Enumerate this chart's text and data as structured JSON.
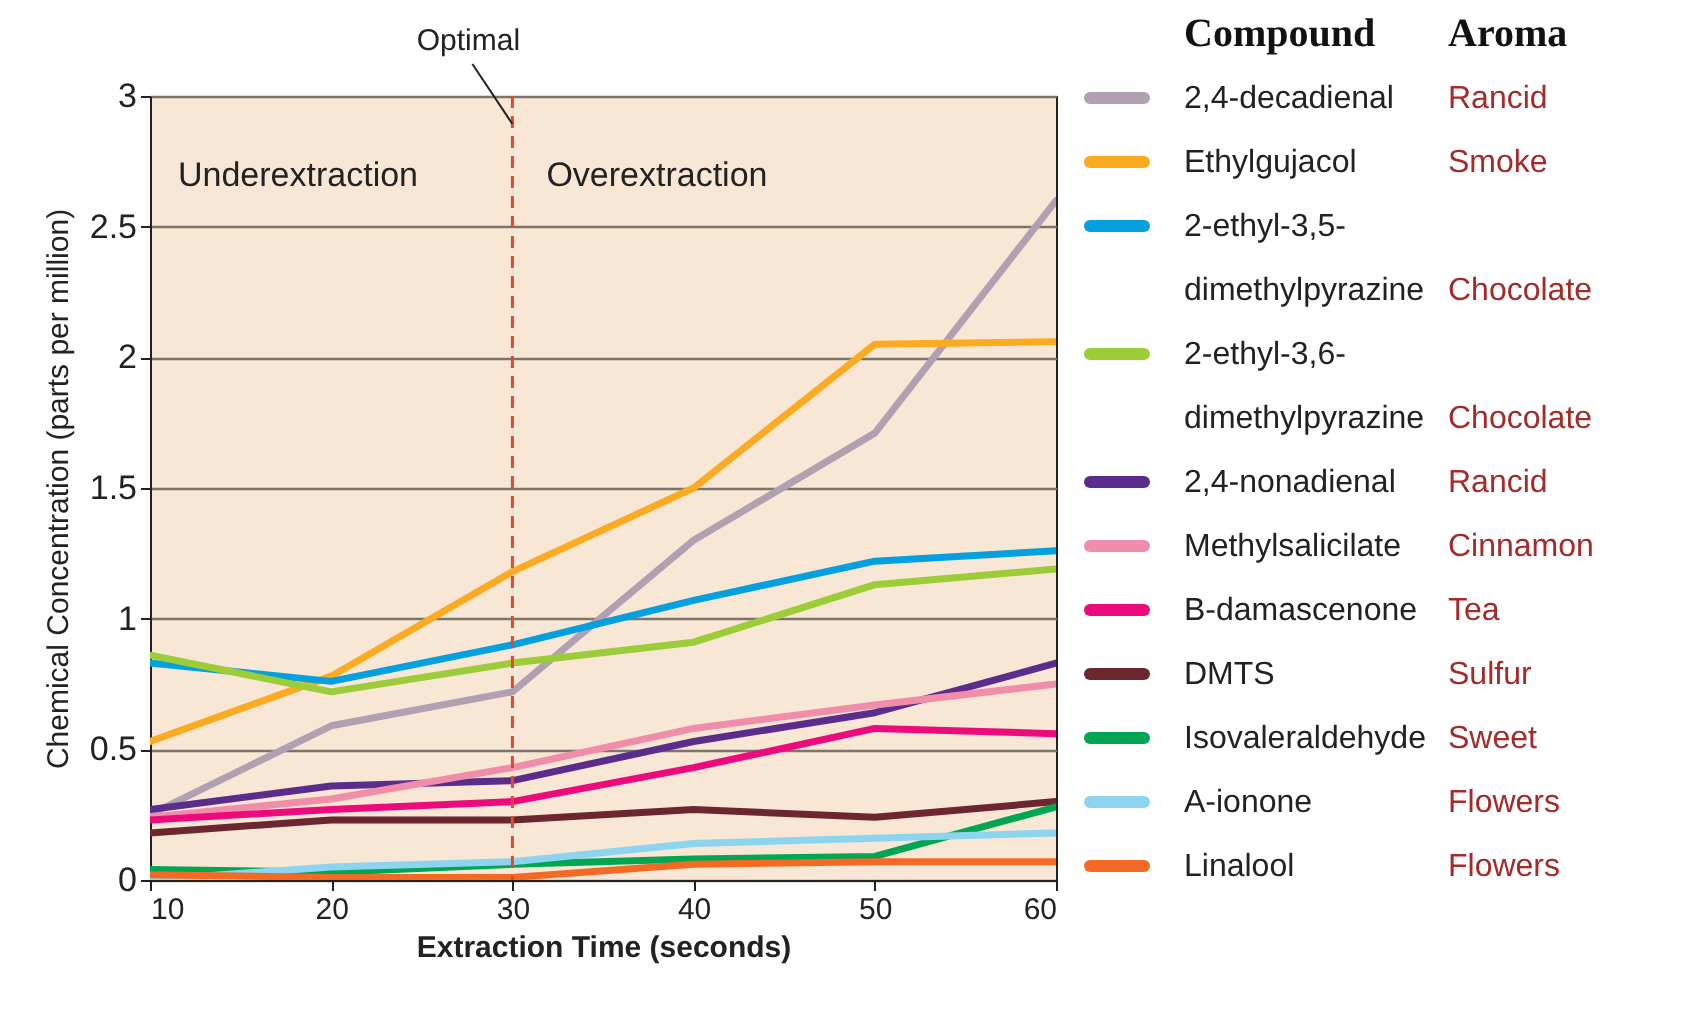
{
  "chart_data": {
    "type": "line",
    "xlabel": "Extraction Time (seconds)",
    "ylabel": "Chemical Concentration (parts per million)",
    "legend_title": "Compound",
    "x": [
      10,
      20,
      30,
      40,
      50,
      60
    ],
    "xlim": [
      10,
      60
    ],
    "xticks": [
      10,
      20,
      30,
      40,
      50,
      60
    ],
    "ylim": [
      0,
      3
    ],
    "yticks": [
      0,
      0.5,
      1,
      1.5,
      2,
      2.5,
      3
    ],
    "grid": "y",
    "legend": "right",
    "line_style": "solid",
    "ref_lines": [
      {
        "axis": "x",
        "value": 30,
        "label": "Optimal",
        "color": "#e8452c",
        "line_style": "dashed"
      }
    ],
    "annotations": [
      "Underextraction",
      "Overextraction",
      "Aroma",
      "Rancid",
      "Smoke",
      "Chocolate",
      "Chocolate",
      "Rancid",
      "Cinnamon",
      "Tea",
      "Sulfur",
      "Sweet",
      "Flowers",
      "Flowers"
    ],
    "series": [
      {
        "name": "2,4-decadienal",
        "color": "#b0a0b2",
        "values": [
          0.25,
          0.59,
          0.72,
          1.3,
          1.71,
          2.6
        ]
      },
      {
        "name": "Ethylgujacol",
        "color": "#fbab22",
        "values": [
          0.53,
          0.78,
          1.18,
          1.5,
          2.05,
          2.06
        ]
      },
      {
        "name": "2-ethyl-3,5-dimethylpyrazine",
        "color": "#05a0e0",
        "values": [
          0.83,
          0.76,
          0.9,
          1.07,
          1.22,
          1.26
        ]
      },
      {
        "name": "2-ethyl-3,6-dimethylpyrazine",
        "color": "#9ccc38",
        "values": [
          0.86,
          0.72,
          0.83,
          0.91,
          1.13,
          1.19
        ]
      },
      {
        "name": "2,4-nonadienal",
        "color": "#5a2c8c",
        "values": [
          0.27,
          0.36,
          0.38,
          0.53,
          0.64,
          0.83
        ]
      },
      {
        "name": "Methylsalicilate",
        "color": "#f08dab",
        "values": [
          0.24,
          0.31,
          0.43,
          0.58,
          0.67,
          0.75
        ]
      },
      {
        "name": "B-damascenone",
        "color": "#ec0b7d",
        "values": [
          0.23,
          0.27,
          0.3,
          0.43,
          0.58,
          0.56
        ]
      },
      {
        "name": "DMTS",
        "color": "#6b2630",
        "values": [
          0.18,
          0.23,
          0.23,
          0.27,
          0.24,
          0.3
        ]
      },
      {
        "name": "Isovaleraldehyde",
        "color": "#00a651",
        "values": [
          0.04,
          0.03,
          0.06,
          0.08,
          0.09,
          0.28
        ]
      },
      {
        "name": "A-ionone",
        "color": "#8dd4f0",
        "values": [
          0.0,
          0.05,
          0.07,
          0.14,
          0.16,
          0.18
        ]
      },
      {
        "name": "Linalool",
        "color": "#f26a24",
        "values": [
          0.02,
          0.01,
          0.01,
          0.06,
          0.07,
          0.07
        ]
      }
    ]
  }
}
